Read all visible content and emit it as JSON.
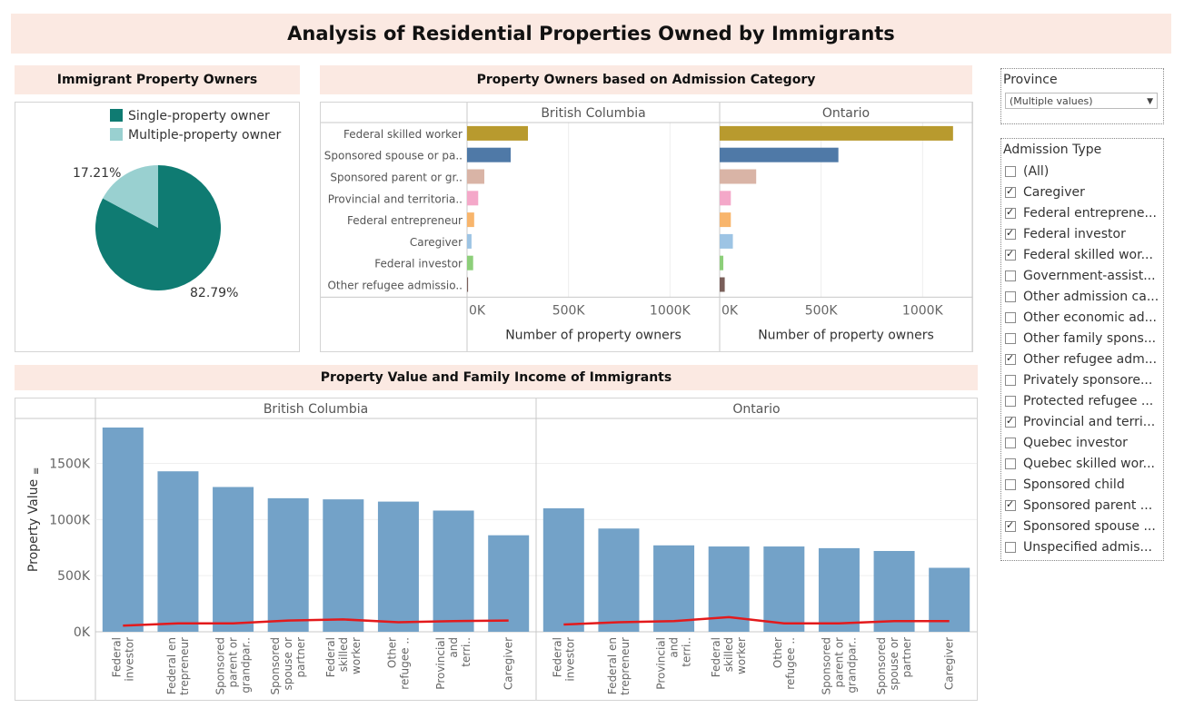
{
  "title": "Analysis of Residential Properties Owned by Immigrants",
  "sections": {
    "pie": "Immigrant Property Owners",
    "bars": "Property Owners based on Admission Category",
    "combo": "Property Value and Family Income of Immigrants"
  },
  "colors": {
    "single": "#0f7b72",
    "multiple": "#99d0d0",
    "combo_bar": "#73a2c8",
    "income_line": "#e31a1c",
    "header_bg": "#fbe9e2"
  },
  "filters": {
    "province": {
      "title": "Province",
      "selected": "(Multiple values)"
    },
    "admission": {
      "title": "Admission Type",
      "items": [
        {
          "label": "(All)",
          "checked": false
        },
        {
          "label": "Caregiver",
          "checked": true
        },
        {
          "label": "Federal entreprene...",
          "checked": true
        },
        {
          "label": "Federal investor",
          "checked": true
        },
        {
          "label": "Federal skilled wor...",
          "checked": true
        },
        {
          "label": "Government-assist...",
          "checked": false
        },
        {
          "label": "Other admission ca...",
          "checked": false
        },
        {
          "label": "Other economic ad...",
          "checked": false
        },
        {
          "label": "Other family spons...",
          "checked": false
        },
        {
          "label": "Other refugee adm...",
          "checked": true
        },
        {
          "label": "Privately sponsore...",
          "checked": false
        },
        {
          "label": "Protected refugee ...",
          "checked": false
        },
        {
          "label": "Provincial and terri...",
          "checked": true
        },
        {
          "label": "Quebec investor",
          "checked": false
        },
        {
          "label": "Quebec skilled wor...",
          "checked": false
        },
        {
          "label": "Sponsored child",
          "checked": false
        },
        {
          "label": "Sponsored parent ...",
          "checked": true
        },
        {
          "label": "Sponsored spouse ...",
          "checked": true
        },
        {
          "label": "Unspecified admis...",
          "checked": false
        }
      ]
    }
  },
  "chart_data": [
    {
      "type": "pie",
      "title": "Immigrant Property Owners",
      "legend": [
        "Single-property owner",
        "Multiple-property owner"
      ],
      "legend_position": "top-right",
      "values": [
        82.79,
        17.21
      ],
      "labels": [
        "82.79%",
        "17.21%"
      ]
    },
    {
      "type": "bar",
      "orientation": "horizontal",
      "title": "Property Owners based on Admission Category",
      "categories": [
        "Federal skilled worker",
        "Sponsored spouse or pa..",
        "Sponsored parent or gr..",
        "Provincial and territoria..",
        "Federal entrepreneur",
        "Caregiver",
        "Federal investor",
        "Other refugee admissio.."
      ],
      "category_colors": [
        "#b89a2e",
        "#4f79a7",
        "#d9b4a6",
        "#f4a8c9",
        "#f8b56c",
        "#9dc4e4",
        "#8dcf7a",
        "#7a5f5a"
      ],
      "panels": [
        {
          "name": "British Columbia",
          "values": [
            300000,
            215000,
            85000,
            55000,
            35000,
            22000,
            30000,
            5000
          ]
        },
        {
          "name": "Ontario",
          "values": [
            1150000,
            585000,
            180000,
            55000,
            55000,
            65000,
            18000,
            25000
          ]
        }
      ],
      "xlabel": "Number of property owners",
      "xticks": [
        "0K",
        "500K",
        "1000K"
      ],
      "xlim": [
        0,
        1200000
      ],
      "grid": true
    },
    {
      "type": "bar",
      "title": "Property Value and Family Income of Immigrants",
      "ylabel": "Property Value",
      "yticks": [
        "0K",
        "500K",
        "1000K",
        "1500K"
      ],
      "ylim": [
        0,
        1850000
      ],
      "panels": [
        {
          "name": "British Columbia",
          "categories": [
            "Federal investor",
            "Federal en trepreneur",
            "Sponsored parent or grandpar..",
            "Sponsored spouse or partner",
            "Federal skilled worker",
            "Other refugee ..",
            "Provincial and terri..",
            "Caregiver"
          ],
          "values": [
            1820000,
            1430000,
            1290000,
            1190000,
            1180000,
            1160000,
            1080000,
            860000
          ],
          "income": [
            55000,
            75000,
            75000,
            100000,
            110000,
            85000,
            95000,
            100000
          ]
        },
        {
          "name": "Ontario",
          "categories": [
            "Federal investor",
            "Federal en trepreneur",
            "Provincial and terri..",
            "Federal skilled worker",
            "Other refugee ..",
            "Sponsored parent or grandpar..",
            "Sponsored spouse or partner",
            "Caregiver"
          ],
          "values": [
            1100000,
            920000,
            770000,
            760000,
            760000,
            745000,
            720000,
            570000
          ],
          "income": [
            65000,
            85000,
            95000,
            130000,
            75000,
            75000,
            95000,
            95000
          ]
        }
      ],
      "grid": true
    }
  ]
}
